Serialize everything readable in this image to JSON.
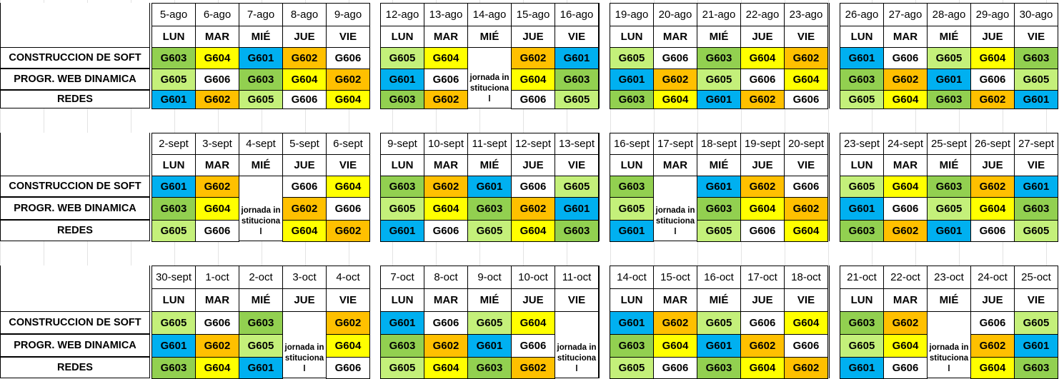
{
  "subjects": [
    "CONSTRUCCION DE SOFT",
    "PROGR. WEB DINAMICA",
    "REDES"
  ],
  "colors": {
    "G601": "#00b0f0",
    "G602": "#ffc000",
    "G603": "#92d050",
    "G604": "#ffff00",
    "G605": "#c4f07a",
    "G606": "#ffffff"
  },
  "blocks": [
    {
      "weeks": [
        {
          "days": [
            {
              "date": "5-ago",
              "day": "LUN",
              "groups": [
                "G603",
                "G605",
                "G601"
              ]
            },
            {
              "date": "6-ago",
              "day": "MAR",
              "groups": [
                "G604",
                "G606",
                "G602"
              ]
            },
            {
              "date": "7-ago",
              "day": "MIÉ",
              "groups": [
                "G601",
                "G603",
                "G605"
              ]
            },
            {
              "date": "8-ago",
              "day": "JUE",
              "groups": [
                "G602",
                "G604",
                "G606"
              ]
            },
            {
              "date": "9-ago",
              "day": "VIE",
              "groups": [
                "G606",
                "G602",
                "G604"
              ]
            }
          ]
        },
        {
          "days": [
            {
              "date": "12-ago",
              "day": "LUN",
              "groups": [
                "G605",
                "G601",
                "G603"
              ]
            },
            {
              "date": "13-ago",
              "day": "MAR",
              "groups": [
                "G604",
                "G606",
                "G602"
              ]
            },
            {
              "date": "14-ago",
              "day": "MIÉ",
              "holiday": "jornada institucional"
            },
            {
              "date": "15-ago",
              "day": "JUE",
              "groups": [
                "G602",
                "G604",
                "G606"
              ]
            },
            {
              "date": "16-ago",
              "day": "VIE",
              "groups": [
                "G601",
                "G603",
                "G605"
              ]
            }
          ]
        },
        {
          "days": [
            {
              "date": "19-ago",
              "day": "LUN",
              "groups": [
                "G605",
                "G601",
                "G603"
              ]
            },
            {
              "date": "20-ago",
              "day": "MAR",
              "groups": [
                "G606",
                "G602",
                "G604"
              ]
            },
            {
              "date": "21-ago",
              "day": "MIÉ",
              "groups": [
                "G603",
                "G605",
                "G601"
              ]
            },
            {
              "date": "22-ago",
              "day": "JUE",
              "groups": [
                "G604",
                "G606",
                "G602"
              ]
            },
            {
              "date": "23-ago",
              "day": "VIE",
              "groups": [
                "G602",
                "G604",
                "G606"
              ]
            }
          ]
        },
        {
          "days": [
            {
              "date": "26-ago",
              "day": "LUN",
              "groups": [
                "G601",
                "G603",
                "G605"
              ]
            },
            {
              "date": "27-ago",
              "day": "MAR",
              "groups": [
                "G606",
                "G602",
                "G604"
              ]
            },
            {
              "date": "28-ago",
              "day": "MIÉ",
              "groups": [
                "G605",
                "G601",
                "G603"
              ]
            },
            {
              "date": "29-ago",
              "day": "JUE",
              "groups": [
                "G604",
                "G606",
                "G602"
              ]
            },
            {
              "date": "30-ago",
              "day": "VIE",
              "groups": [
                "G603",
                "G605",
                "G601"
              ]
            }
          ]
        }
      ]
    },
    {
      "weeks": [
        {
          "days": [
            {
              "date": "2-sept",
              "day": "LUN",
              "groups": [
                "G601",
                "G603",
                "G605"
              ]
            },
            {
              "date": "3-sept",
              "day": "MAR",
              "groups": [
                "G602",
                "G604",
                "G606"
              ]
            },
            {
              "date": "4-sept",
              "day": "MIÉ",
              "holiday": "jornada institucional"
            },
            {
              "date": "5-sept",
              "day": "JUE",
              "groups": [
                "G606",
                "G602",
                "G604"
              ]
            },
            {
              "date": "6-sept",
              "day": "VIE",
              "groups": [
                "G604",
                "G606",
                "G602"
              ]
            }
          ]
        },
        {
          "days": [
            {
              "date": "9-sept",
              "day": "LUN",
              "groups": [
                "G603",
                "G605",
                "G601"
              ]
            },
            {
              "date": "10-sept",
              "day": "MAR",
              "groups": [
                "G602",
                "G604",
                "G606"
              ]
            },
            {
              "date": "11-sept",
              "day": "MIÉ",
              "groups": [
                "G601",
                "G603",
                "G605"
              ]
            },
            {
              "date": "12-sept",
              "day": "JUE",
              "groups": [
                "G606",
                "G602",
                "G604"
              ]
            },
            {
              "date": "13-sept",
              "day": "VIE",
              "groups": [
                "G605",
                "G601",
                "G603"
              ]
            }
          ]
        },
        {
          "days": [
            {
              "date": "16-sept",
              "day": "LUN",
              "groups": [
                "G603",
                "G605",
                "G601"
              ]
            },
            {
              "date": "17-sept",
              "day": "MAR",
              "holiday": "jornada institucional"
            },
            {
              "date": "18-sept",
              "day": "MIÉ",
              "groups": [
                "G601",
                "G603",
                "G605"
              ]
            },
            {
              "date": "19-sept",
              "day": "JUE",
              "groups": [
                "G602",
                "G604",
                "G606"
              ]
            },
            {
              "date": "20-sept",
              "day": "VIE",
              "groups": [
                "G606",
                "G602",
                "G604"
              ]
            }
          ]
        },
        {
          "days": [
            {
              "date": "23-sept",
              "day": "LUN",
              "groups": [
                "G605",
                "G601",
                "G603"
              ]
            },
            {
              "date": "24-sept",
              "day": "MAR",
              "groups": [
                "G604",
                "G606",
                "G602"
              ]
            },
            {
              "date": "25-sept",
              "day": "MIÉ",
              "groups": [
                "G603",
                "G605",
                "G601"
              ]
            },
            {
              "date": "26-sept",
              "day": "JUE",
              "groups": [
                "G602",
                "G604",
                "G606"
              ]
            },
            {
              "date": "27-sept",
              "day": "VIE",
              "groups": [
                "G601",
                "G603",
                "G605"
              ]
            }
          ]
        }
      ]
    },
    {
      "weeks": [
        {
          "days": [
            {
              "date": "30-sept",
              "day": "LUN",
              "groups": [
                "G605",
                "G601",
                "G603"
              ]
            },
            {
              "date": "1-oct",
              "day": "MAR",
              "groups": [
                "G606",
                "G602",
                "G604"
              ]
            },
            {
              "date": "2-oct",
              "day": "MIÉ",
              "groups": [
                "G603",
                "G605",
                "G601"
              ]
            },
            {
              "date": "3-oct",
              "day": "JUE",
              "holiday": "jornada institucional"
            },
            {
              "date": "4-oct",
              "day": "VIE",
              "groups": [
                "G602",
                "G604",
                "G606"
              ]
            }
          ]
        },
        {
          "days": [
            {
              "date": "7-oct",
              "day": "LUN",
              "groups": [
                "G601",
                "G603",
                "G605"
              ]
            },
            {
              "date": "8-oct",
              "day": "MAR",
              "groups": [
                "G606",
                "G602",
                "G604"
              ]
            },
            {
              "date": "9-oct",
              "day": "MIÉ",
              "groups": [
                "G605",
                "G601",
                "G603"
              ]
            },
            {
              "date": "10-oct",
              "day": "JUE",
              "groups": [
                "G604",
                "G606",
                "G602"
              ]
            },
            {
              "date": "11-oct",
              "day": "VIE",
              "holiday": "jornada institucional"
            }
          ]
        },
        {
          "days": [
            {
              "date": "14-oct",
              "day": "LUN",
              "groups": [
                "G601",
                "G603",
                "G605"
              ]
            },
            {
              "date": "15-oct",
              "day": "MAR",
              "groups": [
                "G602",
                "G604",
                "G606"
              ]
            },
            {
              "date": "16-oct",
              "day": "MIÉ",
              "groups": [
                "G605",
                "G601",
                "G603"
              ]
            },
            {
              "date": "17-oct",
              "day": "JUE",
              "groups": [
                "G606",
                "G602",
                "G604"
              ]
            },
            {
              "date": "18-oct",
              "day": "VIE",
              "groups": [
                "G604",
                "G606",
                "G602"
              ]
            }
          ]
        },
        {
          "days": [
            {
              "date": "21-oct",
              "day": "LUN",
              "groups": [
                "G603",
                "G605",
                "G601"
              ]
            },
            {
              "date": "22-oct",
              "day": "MAR",
              "groups": [
                "G602",
                "G604",
                "G606"
              ]
            },
            {
              "date": "23-oct",
              "day": "MIÉ",
              "holiday": "jornada institucional"
            },
            {
              "date": "24-oct",
              "day": "JUE",
              "groups": [
                "G606",
                "G602",
                "G604"
              ]
            },
            {
              "date": "25-oct",
              "day": "VIE",
              "groups": [
                "G605",
                "G601",
                "G603"
              ]
            }
          ]
        }
      ]
    }
  ]
}
